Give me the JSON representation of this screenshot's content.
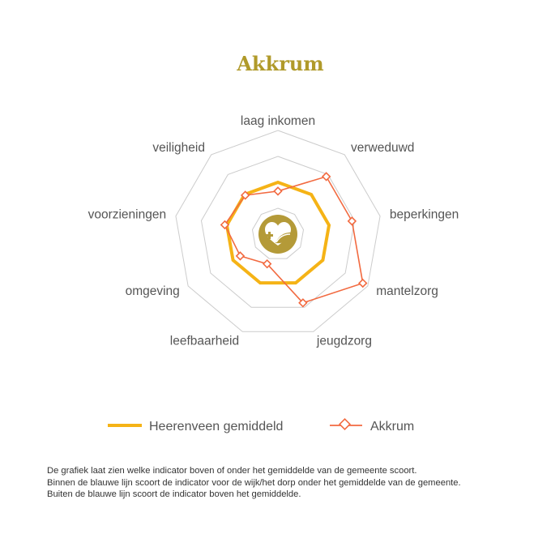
{
  "page_title": "Akkrum",
  "center_icon": "heart-leaf-plus-icon",
  "colors": {
    "title": "#b09a2a",
    "grid": "#cccccc",
    "average": "#f5b316",
    "series": "#f26a40",
    "badge": "#b49a38"
  },
  "chart_data": {
    "type": "radar",
    "axes": [
      "laag inkomen",
      "verweduwd",
      "beperkingen",
      "mantelzorg",
      "jeugdzorg",
      "leefbaarheid",
      "omgeving",
      "voorzieningen",
      "veiligheid"
    ],
    "rings": 4,
    "grid": true,
    "series": [
      {
        "name": "Heerenveen gemiddeld",
        "values": [
          1,
          1,
          1,
          1,
          1,
          1,
          1,
          1,
          1
        ]
      },
      {
        "name": "Akkrum",
        "values": [
          0.83,
          1.45,
          1.45,
          1.89,
          1.41,
          0.61,
          0.84,
          1.04,
          0.98
        ]
      }
    ]
  },
  "legend": {
    "average_label": "Heerenveen gemiddeld",
    "series_label": "Akkrum"
  },
  "footnote": [
    "De grafiek laat zien welke indicator boven of onder het gemiddelde van de gemeente scoort.",
    "Binnen de blauwe lijn scoort de indicator voor de wijk/het dorp onder het gemiddelde van de gemeente.",
    "Buiten de blauwe lijn scoort de indicator boven het gemiddelde."
  ]
}
